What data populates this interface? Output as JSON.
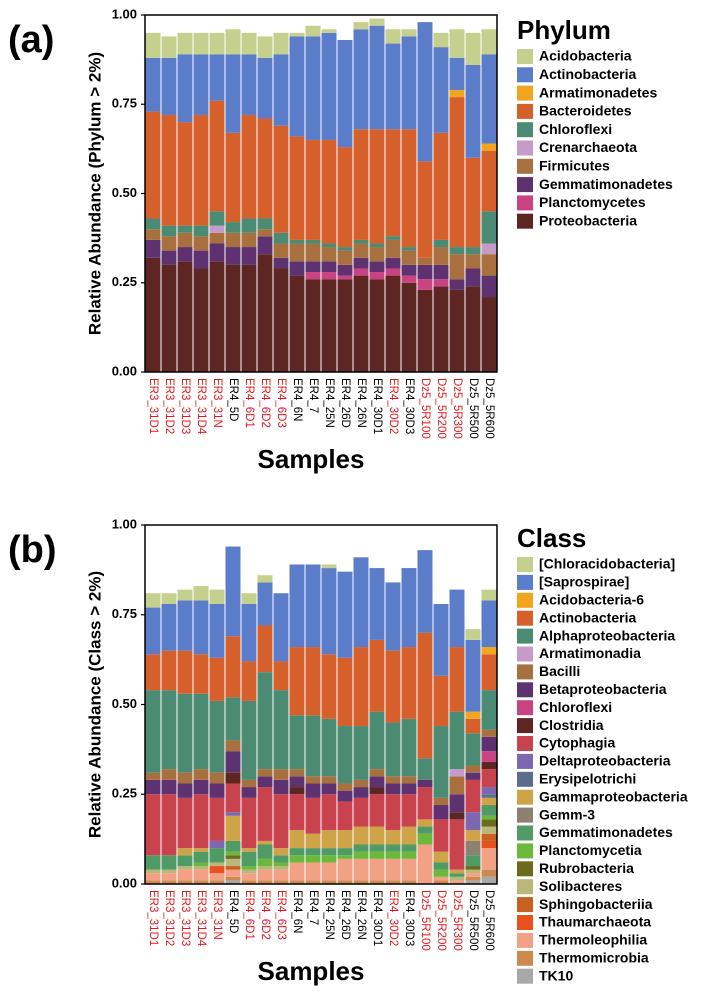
{
  "chart_data": [
    {
      "type": "bar",
      "stacked": true,
      "title": "(a)",
      "ylabel": "Relative Abundance (Phylum > 2%)",
      "xlabel": "Samples",
      "legend_title": "Phylum",
      "categories": [
        "ER3_31D1",
        "ER3_31D2",
        "ER3_31D3",
        "ER3_31D4",
        "ER3_31N",
        "ER4_5D",
        "ER4_6D1",
        "ER4_6D2",
        "ER4_6D3",
        "ER4_6N",
        "ER4_7",
        "ER4_25N",
        "ER4_26D",
        "ER4_26N",
        "ER4_30D1",
        "ER4_30D2",
        "ER4_30D3",
        "Dz5_5R100",
        "Dz5_5R200",
        "Dz5_5R300",
        "Dz5_5R500",
        "Dz5_5R600"
      ],
      "label_colors": [
        "#e31a1c",
        "#e31a1c",
        "#e31a1c",
        "#e31a1c",
        "#e31a1c",
        "#000000",
        "#e31a1c",
        "#e31a1c",
        "#e31a1c",
        "#000000",
        "#000000",
        "#000000",
        "#000000",
        "#000000",
        "#000000",
        "#e31a1c",
        "#000000",
        "#e31a1c",
        "#e31a1c",
        "#e31a1c",
        "#000000",
        "#000000"
      ],
      "ylim": [
        0,
        1
      ],
      "yticks": [
        {
          "value": 0,
          "label": "0.00"
        },
        {
          "value": 0.25,
          "label": "0.25"
        },
        {
          "value": 0.5,
          "label": "0.50"
        },
        {
          "value": 0.75,
          "label": "0.75"
        },
        {
          "value": 1,
          "label": "1.00"
        }
      ],
      "series": [
        {
          "name": "Acidobacteria",
          "color": "#c5d08f",
          "values": [
            0.07,
            0.06,
            0.06,
            0.06,
            0.06,
            0.07,
            0.06,
            0.06,
            0.06,
            0.01,
            0.03,
            0.01,
            0,
            0.02,
            0.02,
            0.04,
            0.02,
            0,
            0.04,
            0.08,
            0.09,
            0.07
          ]
        },
        {
          "name": "Actinobacteria",
          "color": "#5b7cc9",
          "values": [
            0.15,
            0.16,
            0.19,
            0.17,
            0.13,
            0.22,
            0.17,
            0.17,
            0.2,
            0.28,
            0.29,
            0.3,
            0.3,
            0.28,
            0.29,
            0.24,
            0.26,
            0.39,
            0.24,
            0.09,
            0.26,
            0.25
          ]
        },
        {
          "name": "Armatimonadetes",
          "color": "#f2a51f",
          "values": [
            0,
            0,
            0,
            0,
            0,
            0,
            0,
            0,
            0,
            0,
            0,
            0,
            0,
            0,
            0,
            0,
            0,
            0,
            0,
            0.02,
            0,
            0.02
          ]
        },
        {
          "name": "Bacteroidetes",
          "color": "#d6602c",
          "values": [
            0.3,
            0.31,
            0.29,
            0.31,
            0.31,
            0.25,
            0.29,
            0.28,
            0.3,
            0.29,
            0.28,
            0.29,
            0.28,
            0.31,
            0.32,
            0.3,
            0.33,
            0.27,
            0.3,
            0.42,
            0.25,
            0.17
          ]
        },
        {
          "name": "Chloroflexi",
          "color": "#4c8b73",
          "values": [
            0.03,
            0.03,
            0.02,
            0.03,
            0.04,
            0.03,
            0.04,
            0.03,
            0.03,
            0.01,
            0.01,
            0.01,
            0.01,
            0.01,
            0.01,
            0.01,
            0.01,
            0,
            0.02,
            0.02,
            0.02,
            0.09
          ]
        },
        {
          "name": "Crenarchaeota",
          "color": "#c79bc9",
          "values": [
            0,
            0,
            0,
            0,
            0.02,
            0,
            0,
            0,
            0,
            0,
            0,
            0,
            0,
            0,
            0,
            0,
            0,
            0,
            0,
            0,
            0,
            0.03
          ]
        },
        {
          "name": "Firmicutes",
          "color": "#a8703e",
          "values": [
            0.03,
            0.04,
            0.04,
            0.04,
            0.03,
            0.04,
            0.04,
            0.02,
            0.04,
            0.05,
            0.05,
            0.04,
            0.04,
            0.04,
            0.04,
            0.05,
            0.04,
            0.02,
            0.05,
            0.07,
            0.04,
            0.06
          ]
        },
        {
          "name": "Gemmatimonadetes",
          "color": "#5e3270",
          "values": [
            0.05,
            0.04,
            0.04,
            0.05,
            0.05,
            0.05,
            0.05,
            0.05,
            0.03,
            0.04,
            0.03,
            0.03,
            0.03,
            0.03,
            0.03,
            0.03,
            0.03,
            0.04,
            0.04,
            0.03,
            0.05,
            0.06
          ]
        },
        {
          "name": "Planctomycetes",
          "color": "#c94382",
          "values": [
            0,
            0,
            0,
            0,
            0,
            0,
            0,
            0,
            0,
            0,
            0.02,
            0.02,
            0.01,
            0.02,
            0.02,
            0.02,
            0.02,
            0.03,
            0.02,
            0,
            0,
            0
          ]
        },
        {
          "name": "Proteobacteria",
          "color": "#5e2622",
          "values": [
            0.32,
            0.3,
            0.31,
            0.29,
            0.31,
            0.3,
            0.3,
            0.33,
            0.29,
            0.27,
            0.26,
            0.26,
            0.26,
            0.27,
            0.26,
            0.27,
            0.25,
            0.23,
            0.24,
            0.23,
            0.24,
            0.21
          ]
        }
      ]
    },
    {
      "type": "bar",
      "stacked": true,
      "title": "(b)",
      "ylabel": "Relative Abundance (Class > 2%)",
      "xlabel": "Samples",
      "legend_title": "Class",
      "categories": [
        "ER3_31D1",
        "ER3_31D2",
        "ER3_31D3",
        "ER3_31D4",
        "ER3_31N",
        "ER4_5D",
        "ER4_6D1",
        "ER4_6D2",
        "ER4_6D3",
        "ER4_6N",
        "ER4_7",
        "ER4_25N",
        "ER4_26D",
        "ER4_26N",
        "ER4_30D1",
        "ER4_30D2",
        "ER4_30D3",
        "Dz5_5R100",
        "Dz5_5R200",
        "Dz5_5R300",
        "Dz5_5R500",
        "Dz5_5R600"
      ],
      "label_colors": [
        "#e31a1c",
        "#e31a1c",
        "#e31a1c",
        "#e31a1c",
        "#e31a1c",
        "#000000",
        "#e31a1c",
        "#e31a1c",
        "#e31a1c",
        "#000000",
        "#000000",
        "#000000",
        "#000000",
        "#000000",
        "#000000",
        "#e31a1c",
        "#000000",
        "#e31a1c",
        "#e31a1c",
        "#e31a1c",
        "#000000",
        "#000000"
      ],
      "ylim": [
        0,
        1
      ],
      "yticks": [
        {
          "value": 0,
          "label": "0.00"
        },
        {
          "value": 0.25,
          "label": "0.25"
        },
        {
          "value": 0.5,
          "label": "0.50"
        },
        {
          "value": 0.75,
          "label": "0.75"
        },
        {
          "value": 1,
          "label": "1.00"
        }
      ],
      "series": [
        {
          "name": "[Chloracidobacteria]",
          "color": "#c5d08f",
          "values": [
            0.04,
            0.03,
            0.03,
            0.04,
            0.04,
            0,
            0.03,
            0.02,
            0,
            0,
            0,
            0.01,
            0,
            0,
            0,
            0,
            0,
            0,
            0,
            0,
            0.03,
            0.03
          ]
        },
        {
          "name": "[Saprospirae]",
          "color": "#5b7cc9",
          "values": [
            0.13,
            0.13,
            0.14,
            0.15,
            0.15,
            0.25,
            0.16,
            0.12,
            0.19,
            0.23,
            0.23,
            0.24,
            0.24,
            0.25,
            0.2,
            0.19,
            0.22,
            0.23,
            0.2,
            0.16,
            0.2,
            0.13
          ]
        },
        {
          "name": "Acidobacteria-6",
          "color": "#f2a51f",
          "values": [
            0,
            0,
            0,
            0,
            0,
            0,
            0,
            0,
            0,
            0,
            0,
            0,
            0,
            0,
            0,
            0,
            0,
            0,
            0,
            0,
            0.02,
            0.02
          ]
        },
        {
          "name": "Actinobacteria",
          "color": "#d6602c",
          "values": [
            0.1,
            0.11,
            0.12,
            0.11,
            0.12,
            0.17,
            0.11,
            0.13,
            0.08,
            0.19,
            0.19,
            0.18,
            0.19,
            0.22,
            0.2,
            0.2,
            0.2,
            0.35,
            0.14,
            0.18,
            0.04,
            0.1
          ]
        },
        {
          "name": "Alphaproteobacteria",
          "color": "#4c8b73",
          "values": [
            0.23,
            0.22,
            0.22,
            0.21,
            0.2,
            0.12,
            0.22,
            0.27,
            0.22,
            0.15,
            0.17,
            0.16,
            0.16,
            0.15,
            0.16,
            0.15,
            0.16,
            0.06,
            0.2,
            0.16,
            0.09,
            0.11
          ]
        },
        {
          "name": "Armatimonadia",
          "color": "#c79bc9",
          "values": [
            0,
            0,
            0,
            0,
            0,
            0,
            0,
            0,
            0,
            0,
            0,
            0,
            0,
            0,
            0,
            0,
            0,
            0,
            0,
            0.02,
            0,
            0
          ]
        },
        {
          "name": "Bacilli",
          "color": "#a8703e",
          "values": [
            0.02,
            0.03,
            0.03,
            0.03,
            0.03,
            0.03,
            0.02,
            0.02,
            0.03,
            0.02,
            0.02,
            0.02,
            0.02,
            0.02,
            0.02,
            0.02,
            0.02,
            0,
            0.02,
            0.05,
            0.02,
            0.02
          ]
        },
        {
          "name": "Betaproteobacteria",
          "color": "#5e3270",
          "values": [
            0.04,
            0.04,
            0.04,
            0.04,
            0.04,
            0.06,
            0.03,
            0.03,
            0.04,
            0.03,
            0.04,
            0.03,
            0.03,
            0.03,
            0.03,
            0.03,
            0.03,
            0.02,
            0.04,
            0.05,
            0.02,
            0.04
          ]
        },
        {
          "name": "Chloroflexi",
          "color": "#c94382",
          "values": [
            0,
            0,
            0,
            0,
            0,
            0,
            0,
            0,
            0,
            0,
            0,
            0,
            0,
            0,
            0,
            0,
            0,
            0,
            0,
            0,
            0,
            0.03
          ]
        },
        {
          "name": "Clostridia",
          "color": "#5e2622",
          "values": [
            0,
            0,
            0,
            0,
            0,
            0.03,
            0,
            0,
            0,
            0.02,
            0,
            0,
            0,
            0,
            0.02,
            0,
            0,
            0,
            0,
            0.02,
            0,
            0.02
          ]
        },
        {
          "name": "Cytophagia",
          "color": "#c9434f",
          "values": [
            0.17,
            0.17,
            0.14,
            0.15,
            0.12,
            0.08,
            0.14,
            0.15,
            0.15,
            0.1,
            0.1,
            0.1,
            0.08,
            0.08,
            0.09,
            0.1,
            0.09,
            0.09,
            0.09,
            0.14,
            0.09,
            0.05
          ]
        },
        {
          "name": "Deltaproteobacteria",
          "color": "#7b68b0",
          "values": [
            0,
            0,
            0,
            0,
            0.02,
            0.01,
            0,
            0,
            0,
            0,
            0,
            0,
            0,
            0,
            0,
            0,
            0,
            0,
            0,
            0,
            0.05,
            0.02
          ]
        },
        {
          "name": "Erysipelotrichi",
          "color": "#5a6e8c",
          "values": [
            0,
            0,
            0,
            0,
            0,
            0,
            0,
            0,
            0,
            0,
            0,
            0,
            0,
            0,
            0,
            0,
            0,
            0,
            0,
            0,
            0,
            0.01
          ]
        },
        {
          "name": "Gammaproteobacteria",
          "color": "#cfa348",
          "values": [
            0,
            0,
            0.02,
            0.01,
            0,
            0.07,
            0.01,
            0.01,
            0.02,
            0.05,
            0.04,
            0.05,
            0.05,
            0.05,
            0.05,
            0.04,
            0.05,
            0.02,
            0.03,
            0.01,
            0.03,
            0.02
          ]
        },
        {
          "name": "Gemm-3",
          "color": "#8c8070",
          "values": [
            0,
            0,
            0,
            0,
            0,
            0,
            0,
            0,
            0,
            0,
            0,
            0,
            0,
            0,
            0,
            0,
            0,
            0,
            0,
            0,
            0.04,
            0
          ]
        },
        {
          "name": "Gemmatimonadetes",
          "color": "#4f9a65",
          "values": [
            0.04,
            0.04,
            0.03,
            0.03,
            0.04,
            0.03,
            0.04,
            0.04,
            0.02,
            0.02,
            0.02,
            0.02,
            0.02,
            0.02,
            0.02,
            0.02,
            0.02,
            0.02,
            0.02,
            0.01,
            0.03,
            0.03
          ]
        },
        {
          "name": "Planctomycetia",
          "color": "#6cb83b",
          "values": [
            0,
            0,
            0,
            0.01,
            0,
            0.01,
            0.01,
            0.02,
            0.01,
            0.02,
            0.02,
            0.02,
            0.01,
            0.02,
            0.02,
            0.02,
            0.02,
            0.03,
            0.02,
            0,
            0,
            0.01
          ]
        },
        {
          "name": "Rubrobacteria",
          "color": "#6b6b1e",
          "values": [
            0,
            0,
            0,
            0,
            0,
            0.01,
            0,
            0,
            0,
            0,
            0,
            0,
            0,
            0,
            0,
            0,
            0,
            0,
            0,
            0,
            0.01,
            0.02
          ]
        },
        {
          "name": "Solibacteres",
          "color": "#b9b77a",
          "values": [
            0.01,
            0.01,
            0.01,
            0.01,
            0.01,
            0.02,
            0.01,
            0.01,
            0.01,
            0,
            0,
            0,
            0,
            0,
            0,
            0,
            0,
            0,
            0,
            0.01,
            0.01,
            0.02
          ]
        },
        {
          "name": "Sphingobacteriia",
          "color": "#c8611f",
          "values": [
            0,
            0,
            0,
            0,
            0,
            0.01,
            0,
            0,
            0,
            0,
            0,
            0,
            0,
            0,
            0,
            0,
            0,
            0,
            0,
            0,
            0,
            0.02
          ]
        },
        {
          "name": "Thaumarchaeota",
          "color": "#e8501e",
          "values": [
            0,
            0,
            0,
            0,
            0.02,
            0,
            0,
            0,
            0,
            0,
            0,
            0,
            0,
            0,
            0,
            0,
            0,
            0,
            0,
            0,
            0,
            0.02
          ]
        },
        {
          "name": "Thermoleophilia",
          "color": "#f3a185",
          "values": [
            0.02,
            0.02,
            0.03,
            0.03,
            0.02,
            0.02,
            0.02,
            0.03,
            0.03,
            0.05,
            0.05,
            0.05,
            0.06,
            0.06,
            0.06,
            0.06,
            0.06,
            0.11,
            0.01,
            0.01,
            0.01,
            0.06
          ]
        },
        {
          "name": "Thermomicrobia",
          "color": "#cc8a4e",
          "values": [
            0.01,
            0.01,
            0.01,
            0.01,
            0.01,
            0.01,
            0.01,
            0.01,
            0.01,
            0.01,
            0.01,
            0.01,
            0.01,
            0.01,
            0.01,
            0.01,
            0.01,
            0,
            0.01,
            0,
            0.01,
            0.02
          ]
        },
        {
          "name": "TK10",
          "color": "#a8a8a8",
          "values": [
            0,
            0,
            0,
            0,
            0,
            0.01,
            0,
            0,
            0,
            0,
            0,
            0,
            0,
            0,
            0,
            0,
            0,
            0,
            0,
            0,
            0.01,
            0.02
          ]
        }
      ]
    }
  ]
}
